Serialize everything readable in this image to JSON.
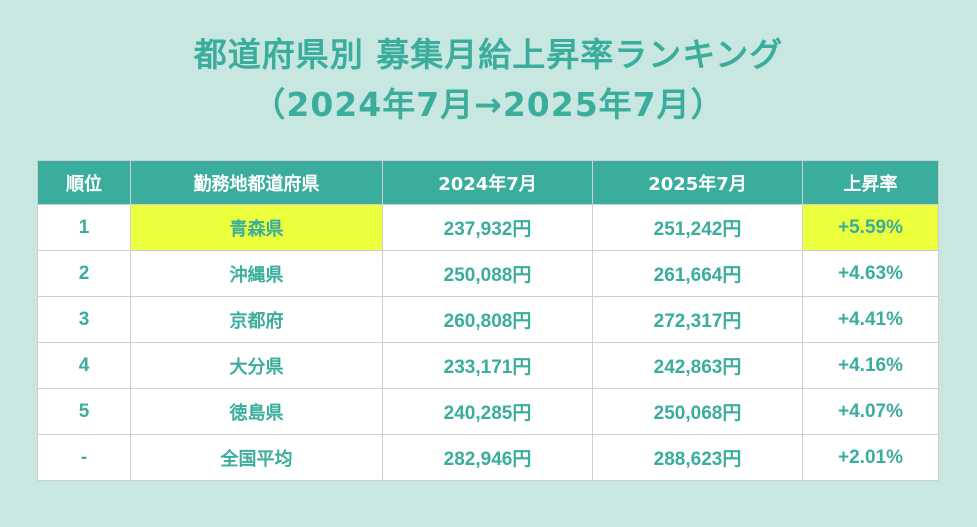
{
  "title": {
    "line1": "都道府県別 募集月給上昇率ランキング",
    "line2": "（2024年7月→2025年7月）"
  },
  "colors": {
    "accent": "#3aad9c",
    "highlight": "#ecff3c",
    "background": "#c8e7e1"
  },
  "table": {
    "headers": [
      "順位",
      "勤務地都道府県",
      "2024年7月",
      "2025年7月",
      "上昇率"
    ],
    "rows": [
      {
        "rank": "1",
        "pref": "青森県",
        "y2024": "237,932円",
        "y2025": "251,242円",
        "rate": "+5.59%"
      },
      {
        "rank": "2",
        "pref": "沖縄県",
        "y2024": "250,088円",
        "y2025": "261,664円",
        "rate": "+4.63%"
      },
      {
        "rank": "3",
        "pref": "京都府",
        "y2024": "260,808円",
        "y2025": "272,317円",
        "rate": "+4.41%"
      },
      {
        "rank": "4",
        "pref": "大分県",
        "y2024": "233,171円",
        "y2025": "242,863円",
        "rate": "+4.16%"
      },
      {
        "rank": "5",
        "pref": "徳島県",
        "y2024": "240,285円",
        "y2025": "250,068円",
        "rate": "+4.07%"
      },
      {
        "rank": "-",
        "pref": "全国平均",
        "y2024": "282,946円",
        "y2025": "288,623円",
        "rate": "+2.01%"
      }
    ]
  }
}
